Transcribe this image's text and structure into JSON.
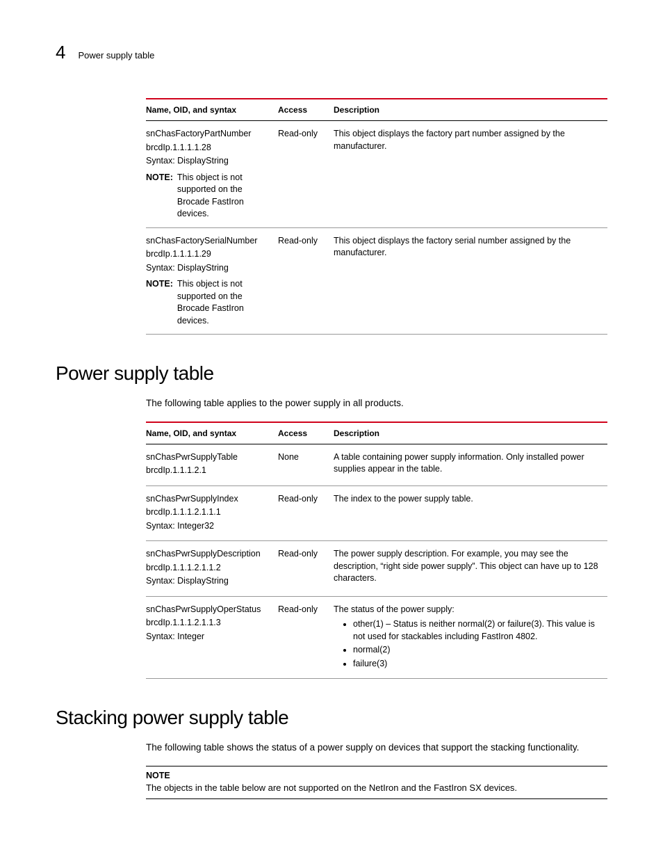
{
  "header": {
    "chapter_number": "4",
    "breadcrumb": "Power supply table"
  },
  "table1": {
    "columns": [
      "Name, OID, and syntax",
      "Access",
      "Description"
    ],
    "rows": [
      {
        "name": "snChasFactoryPartNumber",
        "oid": "brcdIp.1.1.1.1.28",
        "syntax": "Syntax: DisplayString",
        "note_label": "NOTE:",
        "note_text": "This object is not supported on the Brocade FastIron devices.",
        "access": "Read-only",
        "description": "This object displays the factory part number assigned by the manufacturer."
      },
      {
        "name": "snChasFactorySerialNumber",
        "oid": "brcdIp.1.1.1.1.29",
        "syntax": "Syntax: DisplayString",
        "note_label": "NOTE:",
        "note_text": "This object is not supported on the Brocade FastIron devices.",
        "access": "Read-only",
        "description": "This object displays the factory serial number assigned by the manufacturer."
      }
    ]
  },
  "section1": {
    "heading": "Power supply table",
    "intro": "The following table applies to the power supply in all products."
  },
  "table2": {
    "columns": [
      "Name, OID, and syntax",
      "Access",
      "Description"
    ],
    "rows": [
      {
        "name": "snChasPwrSupplyTable",
        "oid": "brcdIp.1.1.1.2.1",
        "syntax": "",
        "access": "None",
        "description": "A table containing power supply information. Only installed power supplies appear in the table."
      },
      {
        "name": "snChasPwrSupplyIndex",
        "oid": "brcdIp.1.1.1.2.1.1.1",
        "syntax": "Syntax: Integer32",
        "access": "Read-only",
        "description": "The index to the power supply table."
      },
      {
        "name": "snChasPwrSupplyDescription",
        "oid": "brcdIp.1.1.1.2.1.1.2",
        "syntax": "Syntax: DisplayString",
        "access": "Read-only",
        "description": "The power supply description. For example, you may see the description, “right side power supply”. This object can have up to 128 characters."
      },
      {
        "name": "snChasPwrSupplyOperStatus",
        "oid": "brcdIp.1.1.1.2.1.1.3",
        "syntax": "Syntax: Integer",
        "access": "Read-only",
        "description_lead": "The status of the power supply:",
        "bullets": [
          "other(1) – Status is neither normal(2) or failure(3). This value is not used for stackables including FastIron 4802.",
          "normal(2)",
          "failure(3)"
        ]
      }
    ]
  },
  "section2": {
    "heading": "Stacking power supply table",
    "intro": "The following table shows the status of a power supply on devices that support the stacking functionality.",
    "note_head": "NOTE",
    "note_body": "The objects in the table below are not supported on the NetIron and the FastIron SX devices."
  }
}
